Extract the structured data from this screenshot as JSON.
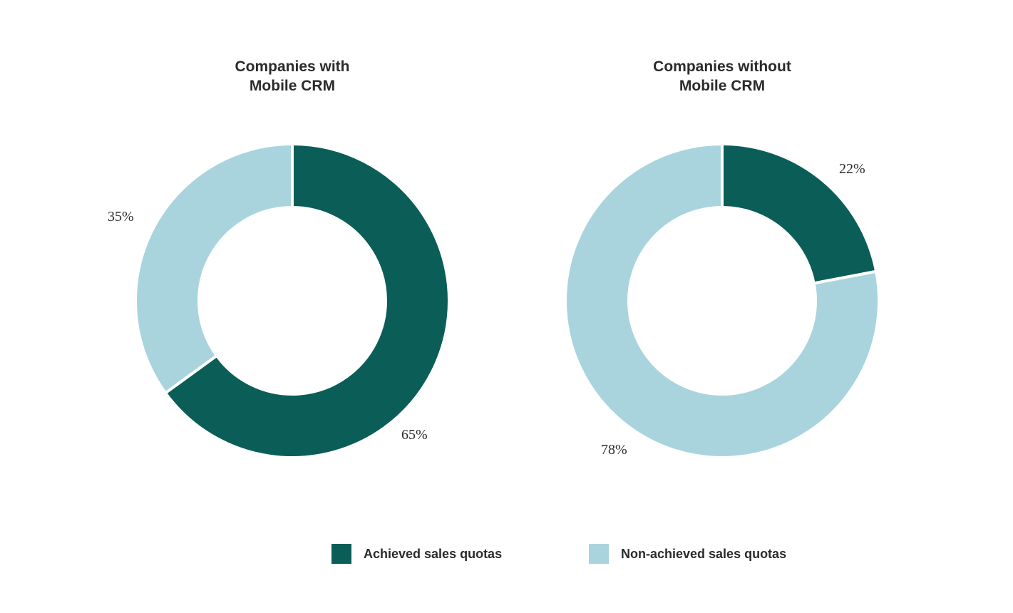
{
  "colors": {
    "achieved": "#0a5e57",
    "non_achieved": "#a9d4de"
  },
  "legend": {
    "achieved": "Achieved sales quotas",
    "non_achieved": "Non-achieved sales quotas"
  },
  "charts": [
    {
      "title_line1": "Companies with",
      "title_line2": "Mobile CRM",
      "achieved_label": "65%",
      "non_achieved_label": "35%"
    },
    {
      "title_line1": "Companies without",
      "title_line2": "Mobile CRM",
      "achieved_label": "22%",
      "non_achieved_label": "78%"
    }
  ],
  "chart_data": [
    {
      "type": "pie",
      "title": "Companies with Mobile CRM",
      "categories": [
        "Achieved sales quotas",
        "Non-achieved sales quotas"
      ],
      "values": [
        65,
        35
      ],
      "colors": [
        "#0a5e57",
        "#a9d4de"
      ],
      "donut": true,
      "legend_position": "bottom"
    },
    {
      "type": "pie",
      "title": "Companies without Mobile CRM",
      "categories": [
        "Achieved sales quotas",
        "Non-achieved sales quotas"
      ],
      "values": [
        22,
        78
      ],
      "colors": [
        "#0a5e57",
        "#a9d4de"
      ],
      "donut": true,
      "legend_position": "bottom"
    }
  ]
}
